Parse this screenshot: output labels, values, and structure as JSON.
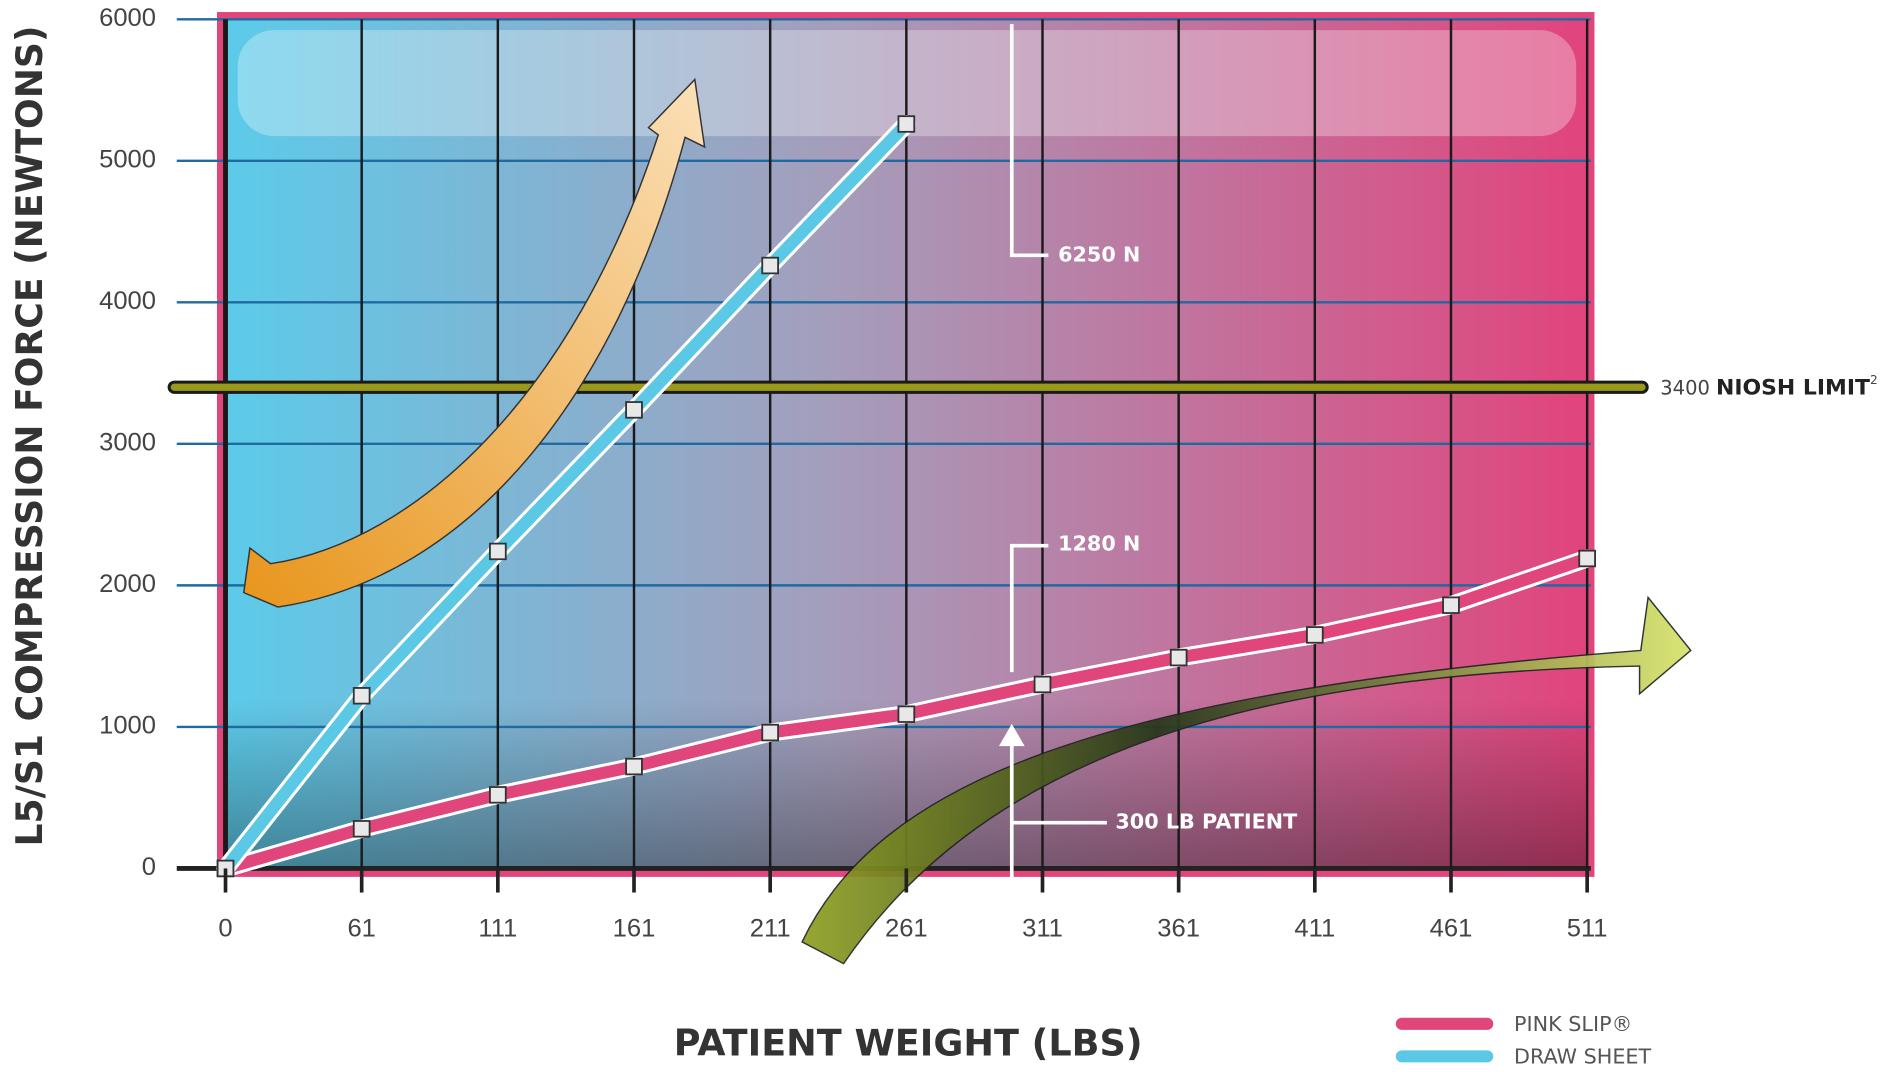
{
  "chart_data": {
    "type": "line",
    "x_label": "PATIENT WEIGHT (LBS)",
    "y_label": "L5/S1 COMPRESSION FORCE (NEWTONS)",
    "categories": [
      "0",
      "61",
      "111",
      "161",
      "211",
      "261",
      "311",
      "361",
      "411",
      "461",
      "511"
    ],
    "series": [
      {
        "name": "PINK SLIP®",
        "color": "#e0457b",
        "values": [
          0,
          280,
          520,
          720,
          960,
          1090,
          1300,
          1490,
          1650,
          1860,
          2190
        ]
      },
      {
        "name": "DRAW SHEET",
        "color": "#5bc8e6",
        "values": [
          0,
          1220,
          2240,
          3240,
          4260,
          5260,
          null,
          null,
          null,
          null,
          null
        ]
      }
    ],
    "ylim": [
      0,
      6000
    ],
    "yticks": [
      0,
      1000,
      2000,
      3000,
      4000,
      5000,
      6000
    ],
    "grid": true,
    "legend": "bottom-right",
    "limit": {
      "value": 3400,
      "name": "NIOSH LIMIT",
      "note": "2",
      "color": "#9a9a1a"
    },
    "annotations": [
      "6250 N",
      "1280 N",
      "300 LB PATIENT"
    ]
  }
}
